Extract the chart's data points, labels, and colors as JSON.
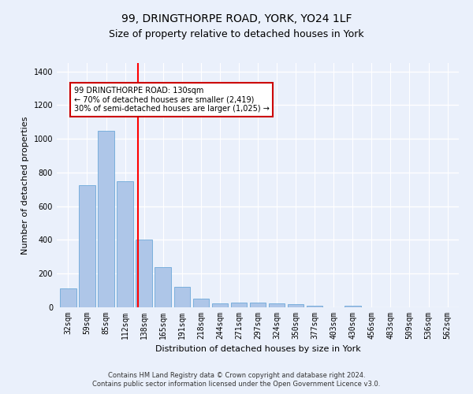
{
  "title": "99, DRINGTHORPE ROAD, YORK, YO24 1LF",
  "subtitle": "Size of property relative to detached houses in York",
  "xlabel": "Distribution of detached houses by size in York",
  "ylabel": "Number of detached properties",
  "categories": [
    "32sqm",
    "59sqm",
    "85sqm",
    "112sqm",
    "138sqm",
    "165sqm",
    "191sqm",
    "218sqm",
    "244sqm",
    "271sqm",
    "297sqm",
    "324sqm",
    "350sqm",
    "377sqm",
    "403sqm",
    "430sqm",
    "456sqm",
    "483sqm",
    "509sqm",
    "536sqm",
    "562sqm"
  ],
  "values": [
    110,
    725,
    1050,
    750,
    400,
    240,
    120,
    50,
    25,
    30,
    30,
    25,
    20,
    10,
    0,
    10,
    0,
    0,
    0,
    0,
    0
  ],
  "bar_color": "#aec6e8",
  "bar_edge_color": "#5a9fd4",
  "red_line_index": 4,
  "annotation_line1": "99 DRINGTHORPE ROAD: 130sqm",
  "annotation_line2": "← 70% of detached houses are smaller (2,419)",
  "annotation_line3": "30% of semi-detached houses are larger (1,025) →",
  "annotation_box_color": "#ffffff",
  "annotation_box_edge_color": "#cc0000",
  "ylim": [
    0,
    1450
  ],
  "yticks": [
    0,
    200,
    400,
    600,
    800,
    1000,
    1200,
    1400
  ],
  "footer1": "Contains HM Land Registry data © Crown copyright and database right 2024.",
  "footer2": "Contains public sector information licensed under the Open Government Licence v3.0.",
  "bg_color": "#eaf0fb",
  "plot_bg_color": "#eaf0fb",
  "grid_color": "#ffffff",
  "title_fontsize": 10,
  "subtitle_fontsize": 9,
  "tick_fontsize": 7,
  "label_fontsize": 8,
  "footer_fontsize": 6
}
